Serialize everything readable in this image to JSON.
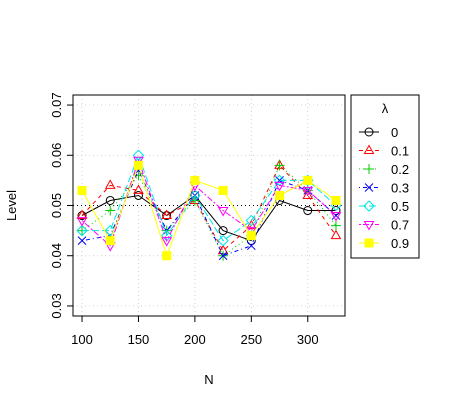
{
  "chart_data": {
    "type": "line",
    "xlabel": "N",
    "ylabel": "Level",
    "legend_title": "λ",
    "legend_placement": "right",
    "grid": true,
    "reference_line": 0.05,
    "xlim": [
      92,
      333
    ],
    "ylim": [
      0.028,
      0.072
    ],
    "x_ticks": [
      "100",
      "150",
      "200",
      "250",
      "300"
    ],
    "y_ticks": [
      "0.03",
      "0.04",
      "0.05",
      "0.06",
      "0.07"
    ],
    "x": [
      100,
      125,
      150,
      175,
      200,
      225,
      250,
      275,
      300,
      325
    ],
    "series": [
      {
        "name": "0",
        "color": "#000000",
        "marker": "circle",
        "dash": "solid",
        "values": [
          0.048,
          0.051,
          0.052,
          0.048,
          0.052,
          0.045,
          0.043,
          0.051,
          0.049,
          0.049
        ]
      },
      {
        "name": "0.1",
        "color": "#ff0000",
        "marker": "triangle-up",
        "dash": "dashed",
        "values": [
          0.048,
          0.054,
          0.053,
          0.048,
          0.051,
          0.041,
          0.046,
          0.058,
          0.052,
          0.044
        ]
      },
      {
        "name": "0.2",
        "color": "#00cc00",
        "marker": "plus",
        "dash": "dotted",
        "values": [
          0.045,
          0.049,
          0.056,
          0.045,
          0.051,
          0.04,
          0.044,
          0.058,
          0.053,
          0.046
        ]
      },
      {
        "name": "0.3",
        "color": "#0000ff",
        "marker": "cross",
        "dash": "dotdash",
        "values": [
          0.043,
          0.044,
          0.057,
          0.045,
          0.052,
          0.04,
          0.042,
          0.055,
          0.053,
          0.048
        ]
      },
      {
        "name": "0.5",
        "color": "#00e5e5",
        "marker": "diamond",
        "dash": "longdash",
        "values": [
          0.045,
          0.045,
          0.06,
          0.044,
          0.052,
          0.043,
          0.047,
          0.055,
          0.055,
          0.05
        ]
      },
      {
        "name": "0.7",
        "color": "#ff00ff",
        "marker": "triangle-down",
        "dash": "twodash",
        "values": [
          0.047,
          0.042,
          0.059,
          0.043,
          0.054,
          0.049,
          0.045,
          0.054,
          0.053,
          0.048
        ]
      },
      {
        "name": "0.9",
        "color": "#ffff00",
        "marker": "square",
        "dash": "solid",
        "values": [
          0.053,
          0.043,
          0.058,
          0.04,
          0.055,
          0.053,
          0.044,
          0.052,
          0.055,
          0.051
        ]
      }
    ]
  }
}
